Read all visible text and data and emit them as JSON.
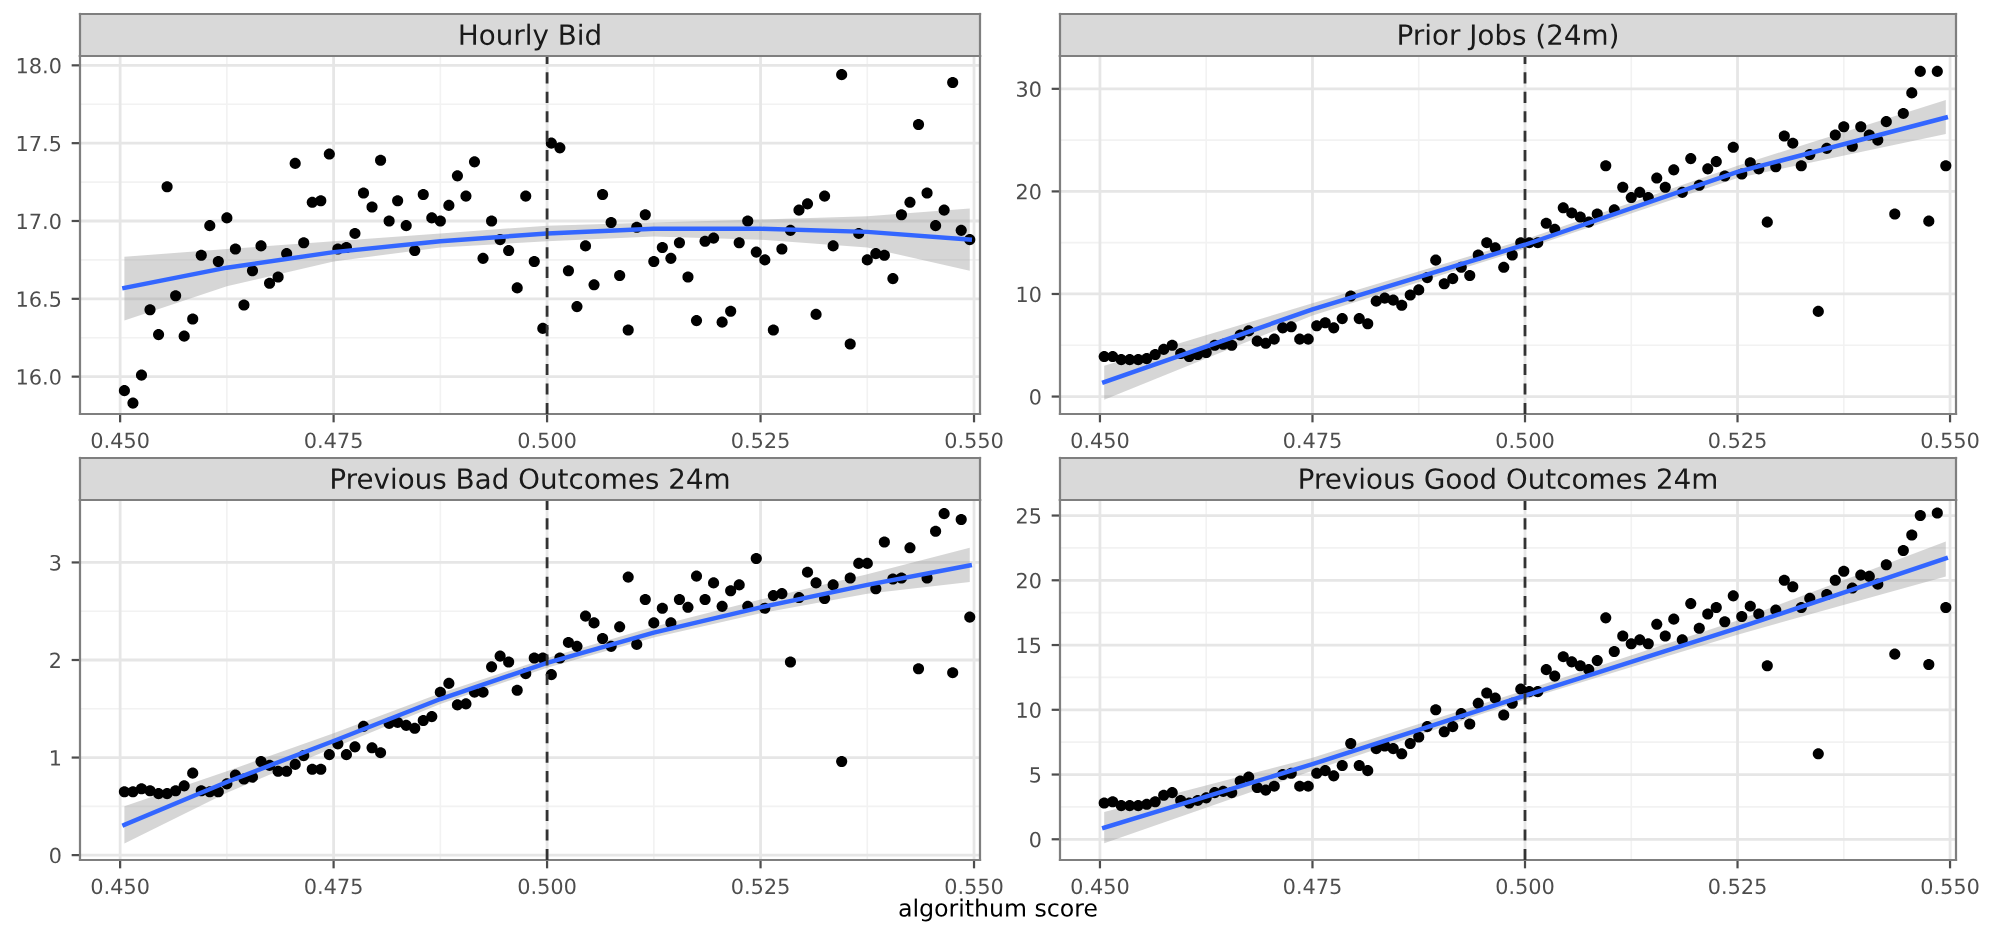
{
  "chart_data": [
    {
      "type": "scatter",
      "title": "Hourly Bid",
      "grid": true,
      "xlim": [
        0.4453,
        0.5507
      ],
      "ylim": [
        15.76,
        18.06
      ],
      "xticks": [
        {
          "value": 0.45,
          "label": "0.450"
        },
        {
          "value": 0.475,
          "label": "0.475"
        },
        {
          "value": 0.5,
          "label": "0.500"
        },
        {
          "value": 0.525,
          "label": "0.525"
        },
        {
          "value": 0.55,
          "label": "0.550"
        }
      ],
      "yticks": [
        {
          "value": 16.0,
          "label": "16.0"
        },
        {
          "value": 16.5,
          "label": "16.5"
        },
        {
          "value": 17.0,
          "label": "17.0"
        },
        {
          "value": 17.5,
          "label": "17.5"
        },
        {
          "value": 18.0,
          "label": "18.0"
        }
      ],
      "ref_lines": [
        {
          "axis": "x",
          "value": 0.5,
          "line_style": "dashed",
          "color": "#333333"
        }
      ],
      "x": [
        0.4505,
        0.4515,
        0.4525,
        0.4535,
        0.4545,
        0.4555,
        0.4565,
        0.4575,
        0.4585,
        0.4595,
        0.4605,
        0.4615,
        0.4625,
        0.4635,
        0.4645,
        0.4655,
        0.4665,
        0.4675,
        0.4685,
        0.4695,
        0.4705,
        0.4715,
        0.4725,
        0.4735,
        0.4745,
        0.4755,
        0.4765,
        0.4775,
        0.4785,
        0.4795,
        0.4805,
        0.4815,
        0.4825,
        0.4835,
        0.4845,
        0.4855,
        0.4865,
        0.4875,
        0.4885,
        0.4895,
        0.4905,
        0.4915,
        0.4925,
        0.4935,
        0.4945,
        0.4955,
        0.4965,
        0.4975,
        0.4985,
        0.4995,
        0.5005,
        0.5015,
        0.5025,
        0.5035,
        0.5045,
        0.5055,
        0.5065,
        0.5075,
        0.5085,
        0.5095,
        0.5105,
        0.5115,
        0.5125,
        0.5135,
        0.5145,
        0.5155,
        0.5165,
        0.5175,
        0.5185,
        0.5195,
        0.5205,
        0.5215,
        0.5225,
        0.5235,
        0.5245,
        0.5255,
        0.5265,
        0.5275,
        0.5285,
        0.5295,
        0.5305,
        0.5315,
        0.5325,
        0.5335,
        0.5345,
        0.5355,
        0.5365,
        0.5375,
        0.5385,
        0.5395,
        0.5405,
        0.5415,
        0.5425,
        0.5435,
        0.5445,
        0.5455,
        0.5465,
        0.5475,
        0.5485,
        0.5495
      ],
      "series": [
        {
          "color": "#000000",
          "marker": "circle",
          "values": [
            15.91,
            15.83,
            16.01,
            16.43,
            16.27,
            17.22,
            16.52,
            16.26,
            16.37,
            16.78,
            16.97,
            16.74,
            17.02,
            16.82,
            16.46,
            16.68,
            16.84,
            16.6,
            16.64,
            16.79,
            17.37,
            16.86,
            17.12,
            17.13,
            17.43,
            16.82,
            16.83,
            16.92,
            17.18,
            17.09,
            17.39,
            17.0,
            17.13,
            16.97,
            16.81,
            17.17,
            17.02,
            17.0,
            17.1,
            17.29,
            17.16,
            17.38,
            16.76,
            17.0,
            16.88,
            16.81,
            16.57,
            17.16,
            16.74,
            16.31,
            17.5,
            17.47,
            16.68,
            16.45,
            16.84,
            16.59,
            17.17,
            16.99,
            16.65,
            16.3,
            16.96,
            17.04,
            16.74,
            16.83,
            16.76,
            16.86,
            16.64,
            16.36,
            16.87,
            16.89,
            16.35,
            16.42,
            16.86,
            17.0,
            16.8,
            16.75,
            16.3,
            16.82,
            16.94,
            17.07,
            17.11,
            16.4,
            17.16,
            16.84,
            17.94,
            16.21,
            16.92,
            16.75,
            16.79,
            16.78,
            16.63,
            17.04,
            17.12,
            17.62,
            17.18,
            16.97,
            17.07,
            17.89,
            16.94,
            16.88
          ]
        },
        {
          "type": "line",
          "color": "#3366ff",
          "line_style": "solid",
          "x": [
            0.4505,
            0.4625,
            0.475,
            0.4875,
            0.5,
            0.5125,
            0.525,
            0.5375,
            0.5495
          ],
          "values": [
            16.57,
            16.7,
            16.8,
            16.87,
            16.92,
            16.95,
            16.95,
            16.93,
            16.88
          ],
          "lower": [
            16.36,
            16.58,
            16.74,
            16.83,
            16.87,
            16.9,
            16.88,
            16.83,
            16.68
          ],
          "upper": [
            16.77,
            16.82,
            16.87,
            16.92,
            16.97,
            16.99,
            17.01,
            17.03,
            17.08
          ]
        }
      ]
    },
    {
      "type": "scatter",
      "title": "Prior Jobs (24m)",
      "grid": true,
      "xlim": [
        0.4453,
        0.5507
      ],
      "ylim": [
        -1.7,
        33.2
      ],
      "xticks": [
        {
          "value": 0.45,
          "label": "0.450"
        },
        {
          "value": 0.475,
          "label": "0.475"
        },
        {
          "value": 0.5,
          "label": "0.500"
        },
        {
          "value": 0.525,
          "label": "0.525"
        },
        {
          "value": 0.55,
          "label": "0.550"
        }
      ],
      "yticks": [
        0,
        10,
        20,
        30
      ],
      "ref_lines": [
        {
          "axis": "x",
          "value": 0.5,
          "line_style": "dashed",
          "color": "#333333"
        }
      ],
      "x": [
        0.4505,
        0.4515,
        0.4525,
        0.4535,
        0.4545,
        0.4555,
        0.4565,
        0.4575,
        0.4585,
        0.4595,
        0.4605,
        0.4615,
        0.4625,
        0.4635,
        0.4645,
        0.4655,
        0.4665,
        0.4675,
        0.4685,
        0.4695,
        0.4705,
        0.4715,
        0.4725,
        0.4735,
        0.4745,
        0.4755,
        0.4765,
        0.4775,
        0.4785,
        0.4795,
        0.4805,
        0.4815,
        0.4825,
        0.4835,
        0.4845,
        0.4855,
        0.4865,
        0.4875,
        0.4885,
        0.4895,
        0.4905,
        0.4915,
        0.4925,
        0.4935,
        0.4945,
        0.4955,
        0.4965,
        0.4975,
        0.4985,
        0.4995,
        0.5005,
        0.5015,
        0.5025,
        0.5035,
        0.5045,
        0.5055,
        0.5065,
        0.5075,
        0.5085,
        0.5095,
        0.5105,
        0.5115,
        0.5125,
        0.5135,
        0.5145,
        0.5155,
        0.5165,
        0.5175,
        0.5185,
        0.5195,
        0.5205,
        0.5215,
        0.5225,
        0.5235,
        0.5245,
        0.5255,
        0.5265,
        0.5275,
        0.5285,
        0.5295,
        0.5305,
        0.5315,
        0.5325,
        0.5335,
        0.5345,
        0.5355,
        0.5365,
        0.5375,
        0.5385,
        0.5395,
        0.5405,
        0.5415,
        0.5425,
        0.5435,
        0.5445,
        0.5455,
        0.5465,
        0.5475,
        0.5485,
        0.5495
      ],
      "series": [
        {
          "color": "#000000",
          "marker": "circle",
          "values": [
            3.9,
            3.9,
            3.6,
            3.6,
            3.6,
            3.7,
            4.1,
            4.6,
            5.0,
            4.2,
            3.9,
            4.1,
            4.3,
            5.0,
            5.1,
            5.0,
            6.0,
            6.4,
            5.4,
            5.2,
            5.6,
            6.7,
            6.8,
            5.6,
            5.6,
            6.9,
            7.2,
            6.7,
            7.6,
            9.8,
            7.6,
            7.1,
            9.3,
            9.6,
            9.4,
            8.9,
            9.9,
            10.4,
            11.6,
            13.3,
            11.0,
            11.5,
            12.6,
            11.8,
            13.8,
            15.0,
            14.5,
            12.6,
            13.8,
            15.0,
            15.0,
            15.0,
            16.9,
            16.3,
            18.4,
            17.9,
            17.5,
            17.0,
            17.8,
            22.5,
            18.2,
            20.4,
            19.4,
            19.9,
            19.4,
            21.3,
            20.4,
            22.1,
            19.9,
            23.2,
            20.6,
            22.2,
            22.9,
            21.5,
            24.3,
            21.7,
            22.8,
            22.2,
            17.0,
            22.4,
            25.4,
            24.7,
            22.5,
            23.6,
            8.3,
            24.2,
            25.5,
            26.3,
            24.4,
            26.3,
            25.5,
            25.0,
            26.8,
            17.8,
            27.6,
            29.6,
            31.7,
            17.1,
            31.7,
            22.5
          ]
        },
        {
          "type": "line",
          "color": "#3366ff",
          "line_style": "solid",
          "x": [
            0.4505,
            0.475,
            0.5,
            0.525,
            0.5495
          ],
          "values": [
            1.4,
            8.5,
            14.8,
            21.9,
            27.2
          ],
          "lower": [
            -0.3,
            7.9,
            14.4,
            21.3,
            25.6
          ],
          "upper": [
            3.0,
            9.1,
            15.3,
            22.5,
            28.9
          ]
        }
      ]
    },
    {
      "type": "scatter",
      "title": "Previous Bad Outcomes 24m",
      "grid": true,
      "xlim": [
        0.4453,
        0.5507
      ],
      "ylim": [
        -0.05,
        3.64
      ],
      "xticks": [
        {
          "value": 0.45,
          "label": "0.450"
        },
        {
          "value": 0.475,
          "label": "0.475"
        },
        {
          "value": 0.5,
          "label": "0.500"
        },
        {
          "value": 0.525,
          "label": "0.525"
        },
        {
          "value": 0.55,
          "label": "0.550"
        }
      ],
      "yticks": [
        0,
        1,
        2,
        3
      ],
      "ref_lines": [
        {
          "axis": "x",
          "value": 0.5,
          "line_style": "dashed",
          "color": "#333333"
        }
      ],
      "x": [
        0.4505,
        0.4515,
        0.4525,
        0.4535,
        0.4545,
        0.4555,
        0.4565,
        0.4575,
        0.4585,
        0.4595,
        0.4605,
        0.4615,
        0.4625,
        0.4635,
        0.4645,
        0.4655,
        0.4665,
        0.4675,
        0.4685,
        0.4695,
        0.4705,
        0.4715,
        0.4725,
        0.4735,
        0.4745,
        0.4755,
        0.4765,
        0.4775,
        0.4785,
        0.4795,
        0.4805,
        0.4815,
        0.4825,
        0.4835,
        0.4845,
        0.4855,
        0.4865,
        0.4875,
        0.4885,
        0.4895,
        0.4905,
        0.4915,
        0.4925,
        0.4935,
        0.4945,
        0.4955,
        0.4965,
        0.4975,
        0.4985,
        0.4995,
        0.5005,
        0.5015,
        0.5025,
        0.5035,
        0.5045,
        0.5055,
        0.5065,
        0.5075,
        0.5085,
        0.5095,
        0.5105,
        0.5115,
        0.5125,
        0.5135,
        0.5145,
        0.5155,
        0.5165,
        0.5175,
        0.5185,
        0.5195,
        0.5205,
        0.5215,
        0.5225,
        0.5235,
        0.5245,
        0.5255,
        0.5265,
        0.5275,
        0.5285,
        0.5295,
        0.5305,
        0.5315,
        0.5325,
        0.5335,
        0.5345,
        0.5355,
        0.5365,
        0.5375,
        0.5385,
        0.5395,
        0.5405,
        0.5415,
        0.5425,
        0.5435,
        0.5445,
        0.5455,
        0.5465,
        0.5475,
        0.5485,
        0.5495
      ],
      "series": [
        {
          "color": "#000000",
          "marker": "circle",
          "values": [
            0.65,
            0.65,
            0.68,
            0.66,
            0.63,
            0.63,
            0.66,
            0.71,
            0.84,
            0.66,
            0.65,
            0.65,
            0.73,
            0.82,
            0.78,
            0.8,
            0.96,
            0.92,
            0.86,
            0.86,
            0.93,
            1.02,
            0.88,
            0.88,
            1.03,
            1.14,
            1.03,
            1.11,
            1.32,
            1.1,
            1.05,
            1.35,
            1.36,
            1.33,
            1.3,
            1.38,
            1.42,
            1.67,
            1.76,
            1.54,
            1.55,
            1.67,
            1.67,
            1.93,
            2.04,
            1.98,
            1.69,
            1.86,
            2.02,
            2.02,
            1.85,
            2.02,
            2.18,
            2.14,
            2.45,
            2.38,
            2.22,
            2.14,
            2.34,
            2.85,
            2.16,
            2.62,
            2.38,
            2.53,
            2.38,
            2.62,
            2.54,
            2.86,
            2.62,
            2.79,
            2.55,
            2.71,
            2.77,
            2.55,
            3.04,
            2.53,
            2.66,
            2.68,
            1.98,
            2.64,
            2.9,
            2.79,
            2.63,
            2.77,
            0.96,
            2.84,
            2.99,
            2.99,
            2.73,
            3.21,
            2.83,
            2.84,
            3.15,
            1.91,
            2.84,
            3.32,
            3.5,
            1.87,
            3.44,
            2.44
          ]
        },
        {
          "type": "line",
          "color": "#3366ff",
          "line_style": "solid",
          "x": [
            0.4505,
            0.4625,
            0.475,
            0.4875,
            0.5,
            0.5125,
            0.525,
            0.5375,
            0.5495
          ],
          "values": [
            0.31,
            0.75,
            1.17,
            1.6,
            1.97,
            2.28,
            2.54,
            2.77,
            2.97
          ],
          "lower": [
            0.12,
            0.64,
            1.1,
            1.55,
            1.92,
            2.23,
            2.48,
            2.68,
            2.8
          ],
          "upper": [
            0.5,
            0.86,
            1.25,
            1.66,
            2.02,
            2.34,
            2.62,
            2.88,
            3.15
          ]
        }
      ]
    },
    {
      "type": "scatter",
      "title": "Previous Good Outcomes 24m",
      "xlabel": "algorithum score",
      "grid": true,
      "xlim": [
        0.4453,
        0.5507
      ],
      "ylim": [
        -1.6,
        26.2
      ],
      "xticks": [
        {
          "value": 0.45,
          "label": "0.450"
        },
        {
          "value": 0.475,
          "label": "0.475"
        },
        {
          "value": 0.5,
          "label": "0.500"
        },
        {
          "value": 0.525,
          "label": "0.525"
        },
        {
          "value": 0.55,
          "label": "0.550"
        }
      ],
      "yticks": [
        0,
        5,
        10,
        15,
        20,
        25
      ],
      "ref_lines": [
        {
          "axis": "x",
          "value": 0.5,
          "line_style": "dashed",
          "color": "#333333"
        }
      ],
      "x": [
        0.4505,
        0.4515,
        0.4525,
        0.4535,
        0.4545,
        0.4555,
        0.4565,
        0.4575,
        0.4585,
        0.4595,
        0.4605,
        0.4615,
        0.4625,
        0.4635,
        0.4645,
        0.4655,
        0.4665,
        0.4675,
        0.4685,
        0.4695,
        0.4705,
        0.4715,
        0.4725,
        0.4735,
        0.4745,
        0.4755,
        0.4765,
        0.4775,
        0.4785,
        0.4795,
        0.4805,
        0.4815,
        0.4825,
        0.4835,
        0.4845,
        0.4855,
        0.4865,
        0.4875,
        0.4885,
        0.4895,
        0.4905,
        0.4915,
        0.4925,
        0.4935,
        0.4945,
        0.4955,
        0.4965,
        0.4975,
        0.4985,
        0.4995,
        0.5005,
        0.5015,
        0.5025,
        0.5035,
        0.5045,
        0.5055,
        0.5065,
        0.5075,
        0.5085,
        0.5095,
        0.5105,
        0.5115,
        0.5125,
        0.5135,
        0.5145,
        0.5155,
        0.5165,
        0.5175,
        0.5185,
        0.5195,
        0.5205,
        0.5215,
        0.5225,
        0.5235,
        0.5245,
        0.5255,
        0.5265,
        0.5275,
        0.5285,
        0.5295,
        0.5305,
        0.5315,
        0.5325,
        0.5335,
        0.5345,
        0.5355,
        0.5365,
        0.5375,
        0.5385,
        0.5395,
        0.5405,
        0.5415,
        0.5425,
        0.5435,
        0.5445,
        0.5455,
        0.5465,
        0.5475,
        0.5485,
        0.5495
      ],
      "series": [
        {
          "color": "#000000",
          "marker": "circle",
          "values": [
            2.8,
            2.9,
            2.6,
            2.6,
            2.6,
            2.7,
            2.9,
            3.4,
            3.6,
            3.0,
            2.8,
            3.0,
            3.2,
            3.6,
            3.7,
            3.6,
            4.5,
            4.8,
            4.0,
            3.8,
            4.1,
            5.0,
            5.1,
            4.1,
            4.1,
            5.1,
            5.3,
            4.9,
            5.7,
            7.4,
            5.7,
            5.3,
            7.0,
            7.2,
            7.0,
            6.6,
            7.4,
            7.9,
            8.7,
            10.0,
            8.3,
            8.7,
            9.7,
            8.9,
            10.5,
            11.3,
            10.9,
            9.6,
            10.5,
            11.6,
            11.4,
            11.4,
            13.1,
            12.6,
            14.1,
            13.7,
            13.4,
            13.1,
            13.8,
            17.1,
            14.5,
            15.7,
            15.1,
            15.4,
            15.1,
            16.6,
            15.7,
            17.0,
            15.4,
            18.2,
            16.3,
            17.4,
            17.9,
            16.8,
            18.8,
            17.2,
            18.0,
            17.4,
            13.4,
            17.7,
            20.0,
            19.5,
            17.9,
            18.6,
            6.6,
            18.9,
            20.0,
            20.7,
            19.4,
            20.4,
            20.3,
            19.7,
            21.2,
            14.3,
            22.3,
            23.5,
            25.0,
            13.5,
            25.2,
            17.9
          ]
        },
        {
          "type": "line",
          "color": "#3366ff",
          "line_style": "solid",
          "x": [
            0.4505,
            0.475,
            0.5,
            0.525,
            0.5495
          ],
          "values": [
            0.9,
            5.8,
            11.1,
            16.3,
            21.7
          ],
          "lower": [
            -0.3,
            5.3,
            10.8,
            15.8,
            20.3
          ],
          "upper": [
            2.1,
            6.3,
            11.5,
            16.9,
            23.0
          ]
        }
      ]
    }
  ]
}
